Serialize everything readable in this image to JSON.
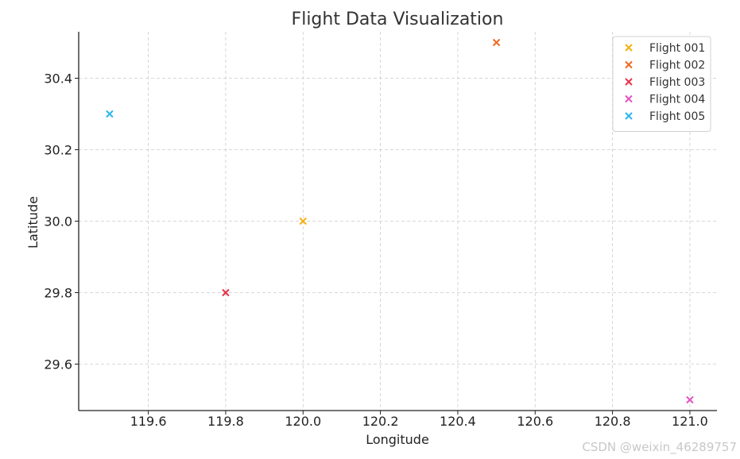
{
  "chart_data": {
    "type": "scatter",
    "title": "Flight Data Visualization",
    "xlabel": "Longitude",
    "ylabel": "Latitude",
    "xlim": [
      119.42,
      121.07
    ],
    "ylim": [
      29.47,
      30.53
    ],
    "xticks": [
      119.6,
      119.8,
      120.0,
      120.2,
      120.4,
      120.6,
      120.8,
      121.0
    ],
    "yticks": [
      29.6,
      29.8,
      30.0,
      30.2,
      30.4
    ],
    "xtick_labels": [
      "119.6",
      "119.8",
      "120.0",
      "120.2",
      "120.4",
      "120.6",
      "120.8",
      "121.0"
    ],
    "ytick_labels": [
      "29.6",
      "29.8",
      "30.0",
      "30.2",
      "30.4"
    ],
    "grid": true,
    "marker": "x",
    "legend_position": "top-right",
    "series": [
      {
        "name": "Flight 001",
        "color": "#f5b111",
        "x": [
          120.0
        ],
        "y": [
          30.0
        ]
      },
      {
        "name": "Flight 002",
        "color": "#ef6a23",
        "x": [
          120.5
        ],
        "y": [
          30.5
        ]
      },
      {
        "name": "Flight 003",
        "color": "#e8344c",
        "x": [
          119.8
        ],
        "y": [
          29.8
        ]
      },
      {
        "name": "Flight 004",
        "color": "#e553c2",
        "x": [
          121.0
        ],
        "y": [
          29.5
        ]
      },
      {
        "name": "Flight 005",
        "color": "#2cb7eb",
        "x": [
          119.5
        ],
        "y": [
          30.3
        ]
      }
    ]
  },
  "watermark": "CSDN @weixin_46289757"
}
